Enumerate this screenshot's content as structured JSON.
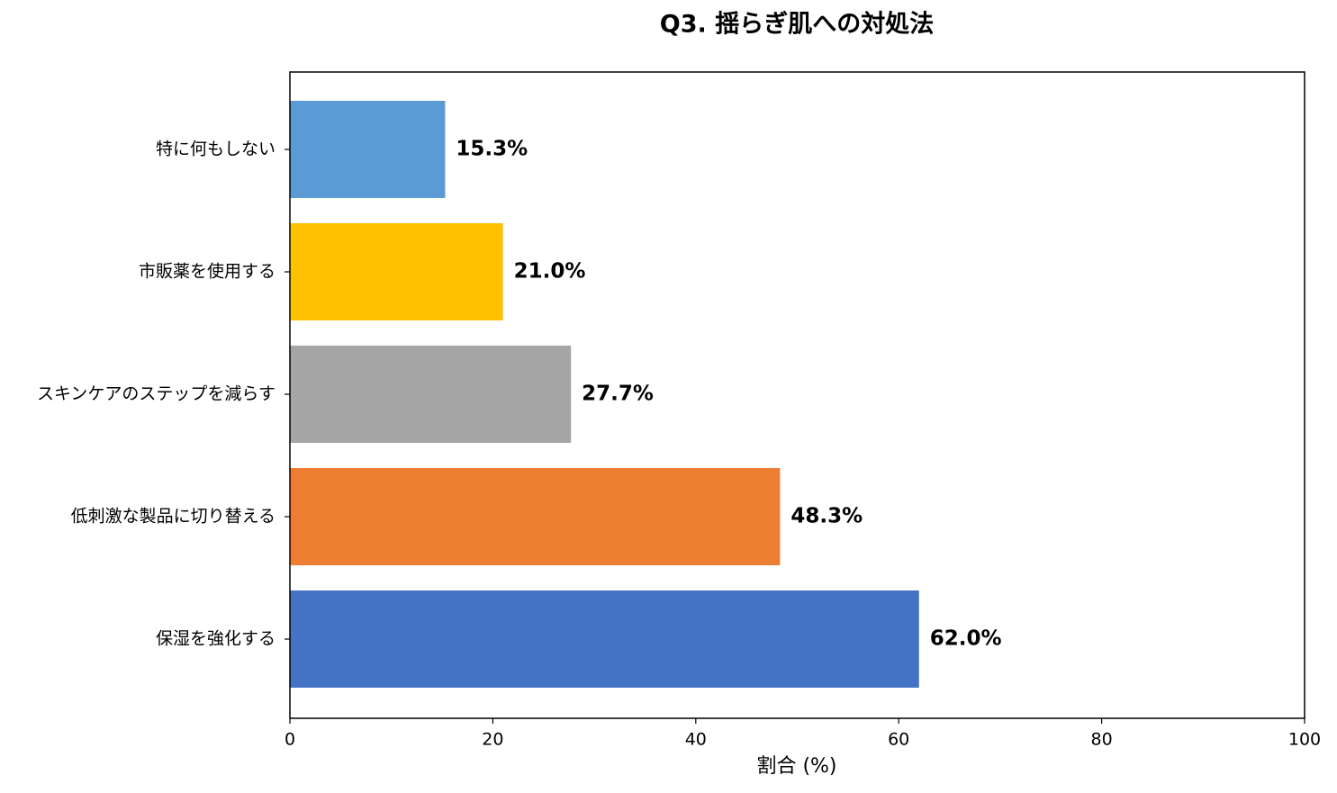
{
  "chart_data": {
    "type": "barh",
    "title": "Q3. 揺らぎ肌への対処法",
    "categories": [
      "特に何もしない",
      "市販薬を使用する",
      "スキンケアのステップを減らす",
      "低刺激な製品に切り替える",
      "保湿を強化する"
    ],
    "values": [
      15.3,
      21.0,
      27.7,
      48.3,
      62.0
    ],
    "value_labels": [
      "15.3%",
      "21.0%",
      "27.7%",
      "48.3%",
      "62.0%"
    ],
    "colors": [
      "#5b9bd5",
      "#ffc000",
      "#a5a5a5",
      "#ed7d31",
      "#4472c4"
    ],
    "xlabel": "割合 (%)",
    "xlim": [
      0,
      100
    ],
    "xticks": [
      0,
      20,
      40,
      60,
      80,
      100
    ],
    "grid": false
  }
}
